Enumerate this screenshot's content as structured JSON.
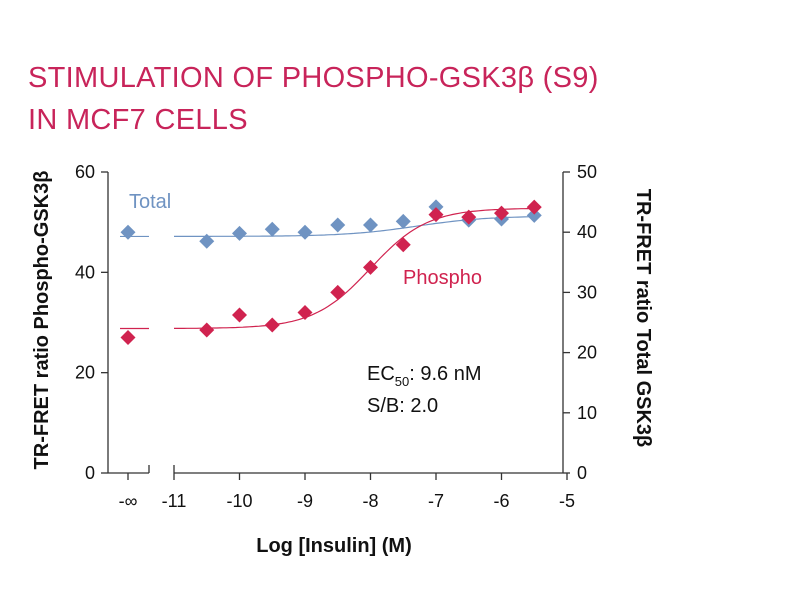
{
  "chart_data": {
    "type": "scatter",
    "title_line1": "STIMULATION OF PHOSPHO-GSK3β (S9)",
    "title_line2": "IN MCF7 CELLS",
    "xlabel": "Log [Insulin] (M)",
    "ylabel_left": "TR-FRET ratio Phospho-GSK3β",
    "ylabel_right": "TR-FRET ratio Total GSK3β",
    "x_ticks": [
      "-∞",
      "-11",
      "-10",
      "-9",
      "-8",
      "-7",
      "-6",
      "-5"
    ],
    "y_left_ticks": [
      "0",
      "20",
      "40",
      "60"
    ],
    "y_right_ticks": [
      "0",
      "10",
      "20",
      "30",
      "40",
      "50"
    ],
    "xlim": [
      -11,
      -5
    ],
    "ylim_left": [
      0,
      60
    ],
    "ylim_right": [
      0,
      50
    ],
    "colors": {
      "total": "#6f93c2",
      "phospho": "#d0234f",
      "title": "#c8245a",
      "axis": "#333333"
    },
    "series": [
      {
        "name": "Total",
        "axis": "right",
        "zero_value": 40.0,
        "x": [
          -10.5,
          -10,
          -9.5,
          -9,
          -8.5,
          -8,
          -7.5,
          -7,
          -6.5,
          -6,
          -5.5
        ],
        "values": [
          38.5,
          39.8,
          40.5,
          40.0,
          41.2,
          41.2,
          41.8,
          44.2,
          42.0,
          42.2,
          42.8
        ],
        "fit": {
          "bottom": 39.3,
          "top": 42.7,
          "logEC50": -7.3,
          "hill": 0.8
        }
      },
      {
        "name": "Phospho",
        "axis": "left",
        "zero_value": 27.0,
        "x": [
          -10.5,
          -10,
          -9.5,
          -9,
          -8.5,
          -8,
          -7.5,
          -7,
          -6.5,
          -6,
          -5.5
        ],
        "values": [
          28.5,
          31.5,
          29.5,
          32.0,
          36.0,
          41.0,
          45.5,
          51.5,
          51.0,
          51.8,
          53.0
        ],
        "fit": {
          "bottom": 28.8,
          "top": 52.8,
          "logEC50": -8.0,
          "hill": 1.0
        }
      }
    ],
    "annotations": {
      "ec50_prefix": "EC",
      "ec50_sub": "50",
      "ec50_value": ": 9.6 nM",
      "sb": "S/B: 2.0"
    }
  }
}
